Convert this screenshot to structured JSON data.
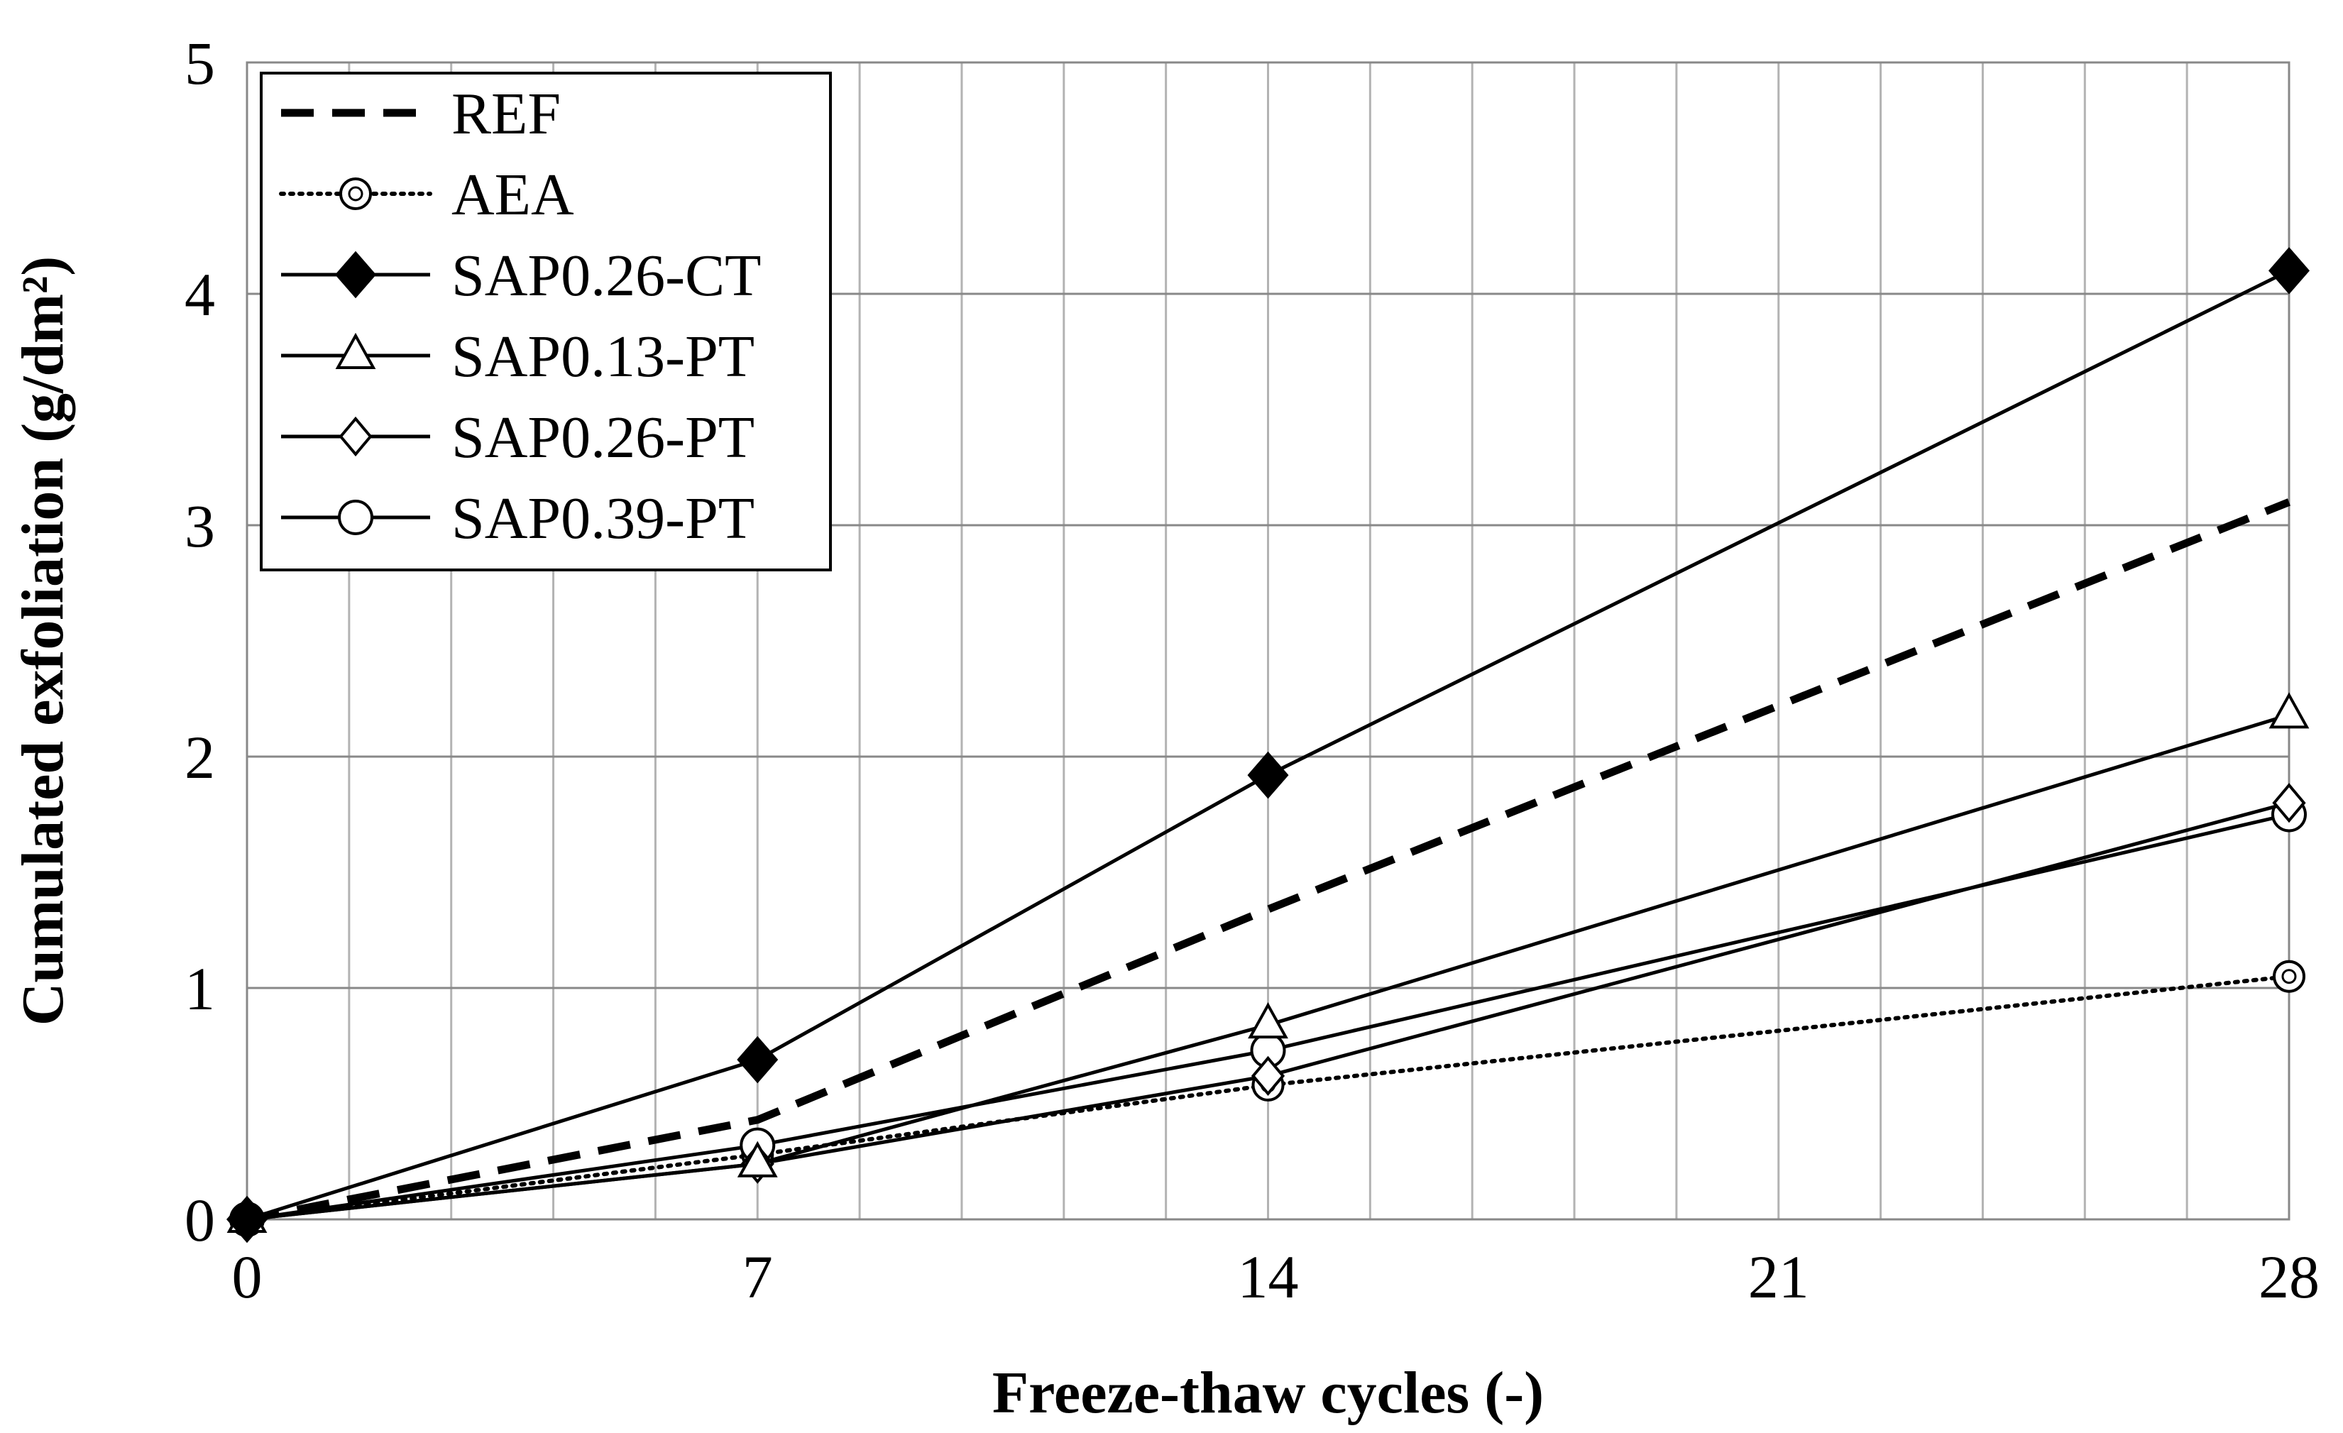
{
  "chart_data": {
    "type": "line",
    "title": "",
    "xlabel": "Freeze-thaw cycles (-)",
    "ylabel": "Cumulated exfoliation (g/dm²)",
    "x": [
      0,
      7,
      14,
      28
    ],
    "xticks": [
      0,
      7,
      14,
      21,
      28
    ],
    "xlim": [
      0,
      28
    ],
    "yticks": [
      0,
      1,
      2,
      3,
      4,
      5
    ],
    "ylim": [
      0,
      5
    ],
    "x_minor_grid_step": 1.4,
    "grid": true,
    "legend_position": "top-left",
    "series": [
      {
        "name": "REF",
        "values": [
          0.0,
          0.43,
          1.34,
          3.1
        ],
        "line": "dashed",
        "marker": "none"
      },
      {
        "name": "AEA",
        "values": [
          0.0,
          0.28,
          0.58,
          1.05
        ],
        "line": "dotted",
        "marker": "circle-dot"
      },
      {
        "name": "SAP0.26-CT",
        "values": [
          0.0,
          0.69,
          1.92,
          4.1
        ],
        "line": "solid",
        "marker": "diamond-filled"
      },
      {
        "name": "SAP0.13-PT",
        "values": [
          0.0,
          0.24,
          0.84,
          2.18
        ],
        "line": "solid",
        "marker": "triangle-open"
      },
      {
        "name": "SAP0.26-PT",
        "values": [
          0.0,
          0.24,
          0.62,
          1.8
        ],
        "line": "solid",
        "marker": "diamond-open"
      },
      {
        "name": "SAP0.39-PT",
        "values": [
          0.0,
          0.32,
          0.73,
          1.75
        ],
        "line": "solid",
        "marker": "circle-open"
      }
    ]
  }
}
